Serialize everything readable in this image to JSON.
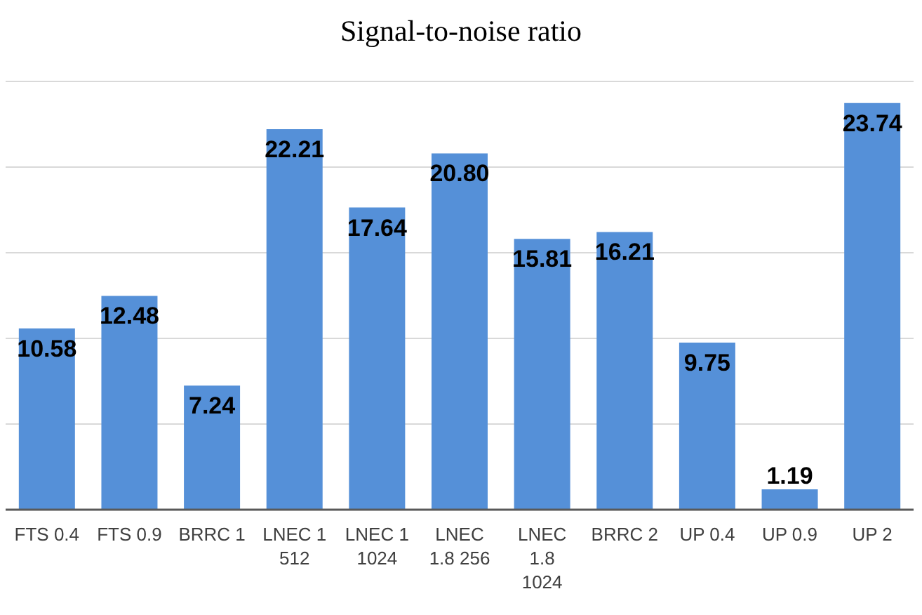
{
  "chart_data": {
    "type": "bar",
    "title": "Signal-to-noise ratio",
    "categories": [
      "FTS 0.4",
      "FTS 0.9",
      "BRRC 1",
      "LNEC 1 512",
      "LNEC 1 1024",
      "LNEC 1.8 256",
      "LNEC 1.8 1024",
      "BRRC 2",
      "UP 0.4",
      "UP 0.9",
      "UP 2"
    ],
    "values": [
      10.58,
      12.48,
      7.24,
      22.21,
      17.64,
      20.8,
      15.81,
      16.21,
      9.75,
      1.19,
      23.74
    ],
    "value_labels": [
      "10.58",
      "12.48",
      "7.24",
      "22.21",
      "17.64",
      "20.80",
      "15.81",
      "16.21",
      "9.75",
      "1.19",
      "23.74"
    ],
    "color": "#5590d8",
    "ylim": [
      0,
      25
    ],
    "yticks": [
      {
        "value": 0,
        "label": null
      },
      {
        "value": 5,
        "label": null
      },
      {
        "value": 10,
        "label": null
      },
      {
        "value": 15,
        "label": null
      },
      {
        "value": 20,
        "label": null
      },
      {
        "value": 25,
        "label": null
      }
    ],
    "grid": "y",
    "tick_labels": "x"
  }
}
